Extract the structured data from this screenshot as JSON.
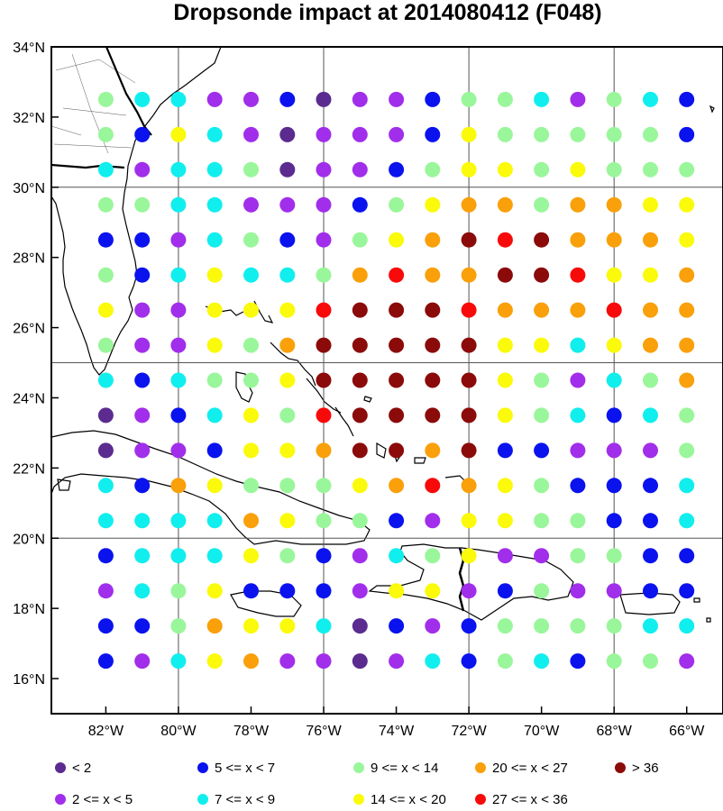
{
  "title": "Dropsonde impact at 2014080412 (F048)",
  "axes": {
    "lon_ticks": [
      "82°W",
      "80°W",
      "78°W",
      "76°W",
      "74°W",
      "72°W",
      "70°W",
      "68°W",
      "66°W"
    ],
    "lat_ticks": [
      "34°N",
      "32°N",
      "30°N",
      "28°N",
      "26°N",
      "24°N",
      "22°N",
      "20°N",
      "18°N",
      "16°N"
    ],
    "lon_values": [
      -82,
      -80,
      -78,
      -76,
      -74,
      -72,
      -70,
      -68,
      -66
    ],
    "lat_values": [
      34,
      32,
      30,
      28,
      26,
      24,
      22,
      20,
      18,
      16
    ],
    "lon_range": [
      -83.5,
      -65
    ],
    "lat_range": [
      15,
      34
    ],
    "grid_lon": [
      -80,
      -76,
      -72,
      -68
    ],
    "grid_lat": [
      30,
      25,
      20
    ]
  },
  "legend": {
    "placement": "bottom",
    "items": [
      {
        "label": "<  2",
        "color": "#5b2b8f"
      },
      {
        "label": "2 <= x <  5",
        "color": "#a12eea"
      },
      {
        "label": "5 <= x <  7",
        "color": "#0a12ee"
      },
      {
        "label": "7 <= x <  9",
        "color": "#11eeee"
      },
      {
        "label": "9 <= x < 14",
        "color": "#9af69a"
      },
      {
        "label": "14 <= x < 20",
        "color": "#fafa0a"
      },
      {
        "label": "20 <= x < 27",
        "color": "#f9a00a"
      },
      {
        "label": "27 <= x < 36",
        "color": "#f80a0a"
      },
      {
        "label": "> 36",
        "color": "#8b0a0a"
      }
    ]
  },
  "chart_data": {
    "type": "scatter",
    "grid": {
      "lons": [
        -82,
        -81,
        -80,
        -79,
        -78,
        -77,
        -76,
        -75,
        -74,
        -73,
        -72,
        -71,
        -70,
        -69,
        -68,
        -67,
        -66
      ],
      "lats": [
        32.5,
        31.5,
        30.5,
        29.5,
        28.5,
        27.5,
        26.5,
        25.5,
        24.5,
        23.5,
        22.5,
        21.5,
        20.5,
        19.5,
        18.5,
        17.5,
        16.5
      ]
    },
    "category_labels": [
      "<  2",
      "2 <= x <  5",
      "5 <= x <  7",
      "7 <= x <  9",
      "9 <= x < 14",
      "14 <= x < 20",
      "20 <= x < 27",
      "27 <= x < 36",
      "> 36"
    ],
    "categories": [
      [
        4,
        3,
        3,
        1,
        1,
        2,
        0,
        1,
        1,
        2,
        4,
        4,
        3,
        1,
        4,
        3,
        2
      ],
      [
        4,
        2,
        5,
        3,
        1,
        0,
        1,
        1,
        1,
        2,
        5,
        4,
        4,
        4,
        4,
        4,
        2
      ],
      [
        3,
        1,
        3,
        3,
        4,
        0,
        1,
        1,
        2,
        4,
        5,
        5,
        4,
        5,
        4,
        4,
        4
      ],
      [
        4,
        4,
        3,
        3,
        1,
        1,
        1,
        2,
        4,
        5,
        6,
        6,
        4,
        6,
        6,
        5,
        5
      ],
      [
        2,
        2,
        1,
        3,
        4,
        2,
        1,
        4,
        5,
        6,
        8,
        7,
        8,
        6,
        6,
        6,
        5
      ],
      [
        4,
        2,
        3,
        5,
        3,
        3,
        4,
        6,
        7,
        6,
        6,
        8,
        8,
        7,
        5,
        5,
        6
      ],
      [
        5,
        1,
        1,
        5,
        5,
        5,
        7,
        8,
        8,
        8,
        7,
        6,
        6,
        6,
        7,
        6,
        6
      ],
      [
        4,
        1,
        1,
        5,
        4,
        6,
        8,
        8,
        8,
        8,
        8,
        5,
        5,
        3,
        5,
        6,
        6
      ],
      [
        3,
        2,
        3,
        4,
        4,
        5,
        8,
        8,
        8,
        8,
        8,
        5,
        4,
        1,
        3,
        4,
        6
      ],
      [
        0,
        1,
        2,
        3,
        5,
        4,
        7,
        8,
        8,
        8,
        8,
        5,
        4,
        3,
        2,
        3,
        4
      ],
      [
        0,
        1,
        1,
        2,
        5,
        5,
        6,
        8,
        8,
        6,
        8,
        2,
        2,
        1,
        1,
        1,
        4
      ],
      [
        3,
        2,
        6,
        5,
        4,
        4,
        4,
        5,
        6,
        7,
        6,
        5,
        4,
        2,
        2,
        2,
        3
      ],
      [
        3,
        3,
        3,
        3,
        6,
        5,
        4,
        4,
        2,
        1,
        5,
        5,
        4,
        4,
        2,
        2,
        3
      ],
      [
        2,
        3,
        3,
        3,
        5,
        4,
        2,
        1,
        3,
        4,
        5,
        1,
        1,
        4,
        4,
        2,
        2
      ],
      [
        1,
        3,
        4,
        5,
        2,
        2,
        2,
        1,
        5,
        5,
        1,
        2,
        4,
        1,
        1,
        2,
        2
      ],
      [
        2,
        2,
        4,
        6,
        5,
        5,
        3,
        0,
        2,
        1,
        2,
        4,
        4,
        4,
        4,
        3,
        3
      ],
      [
        2,
        1,
        3,
        5,
        6,
        1,
        1,
        0,
        1,
        3,
        2,
        4,
        3,
        2,
        4,
        4,
        1
      ]
    ]
  }
}
